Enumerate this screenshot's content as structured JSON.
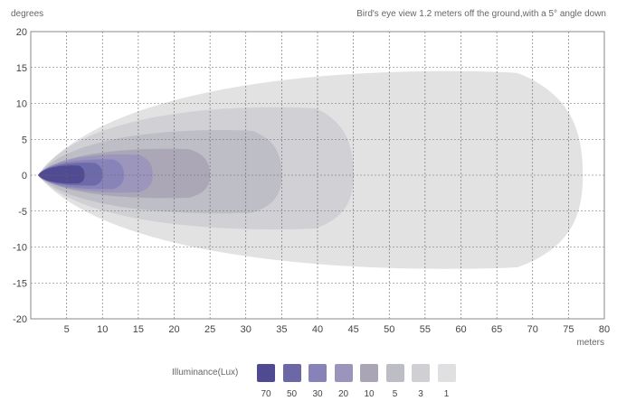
{
  "chart_data": {
    "type": "heatmap",
    "title": "Bird's eye view 1.2 meters off the ground,with a 5° angle down",
    "ylabel": "degrees",
    "xlabel": "meters",
    "xlim": [
      0,
      80
    ],
    "ylim": [
      -20,
      20
    ],
    "x_ticks": [
      5,
      10,
      15,
      20,
      25,
      30,
      35,
      40,
      45,
      50,
      55,
      60,
      65,
      70,
      75,
      80
    ],
    "y_ticks": [
      20,
      15,
      10,
      5,
      0,
      -5,
      -10,
      -15,
      -20
    ],
    "grid": true,
    "legend_title": "Illuminance(Lux)",
    "legend_position": "bottom",
    "series": [
      {
        "name": "1",
        "color": "#e0e0e2",
        "x_end": 77.0,
        "y_max": 15.0,
        "y_min": -13.5
      },
      {
        "name": "3",
        "color": "#cfcfd4",
        "x_end": 45.0,
        "y_max": 9.8,
        "y_min": -7.8
      },
      {
        "name": "5",
        "color": "#bdbdc5",
        "x_end": 35.0,
        "y_max": 6.5,
        "y_min": -5.5
      },
      {
        "name": "10",
        "color": "#aaa5b5",
        "x_end": 25.0,
        "y_max": 3.8,
        "y_min": -3.3
      },
      {
        "name": "20",
        "color": "#9b95be",
        "x_end": 17.0,
        "y_max": 3.0,
        "y_min": -2.5
      },
      {
        "name": "30",
        "color": "#8783b8",
        "x_end": 13.0,
        "y_max": 2.3,
        "y_min": -2.0
      },
      {
        "name": "50",
        "color": "#6c68a8",
        "x_end": 10.0,
        "y_max": 1.8,
        "y_min": -1.5
      },
      {
        "name": "70",
        "color": "#4f4a91",
        "x_end": 7.5,
        "y_max": 1.4,
        "y_min": -1.2
      }
    ],
    "legend_items": [
      {
        "label": "70",
        "color": "#4f4a91"
      },
      {
        "label": "50",
        "color": "#6c68a8"
      },
      {
        "label": "30",
        "color": "#8783b8"
      },
      {
        "label": "20",
        "color": "#9b95be"
      },
      {
        "label": "10",
        "color": "#aaa5b5"
      },
      {
        "label": "5",
        "color": "#bdbdc5"
      },
      {
        "label": "3",
        "color": "#cfcfd4"
      },
      {
        "label": "1",
        "color": "#e0e0e2"
      }
    ]
  }
}
